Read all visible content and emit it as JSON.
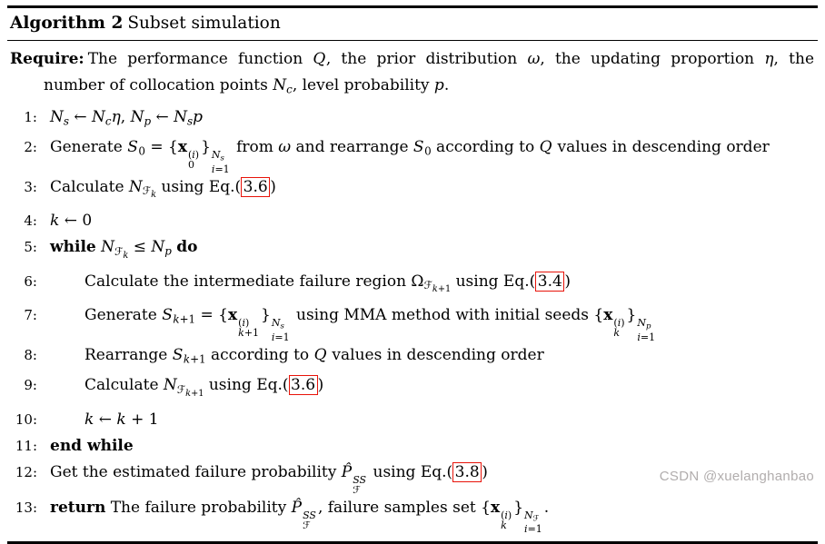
{
  "colors": {
    "rule": "#000000",
    "eqref_border": "#e81309",
    "watermark": "#b1adad"
  },
  "algorithm": {
    "label": "Algorithm 2",
    "title": "Subset simulation",
    "require": {
      "label": "Require:",
      "text_html": "The performance function <span class=\"cal\">Q</span>, the prior distribution <i>ω</i>, the updating proportion <i>η</i>, the number of collocation points <i>N</i><sub><i>c</i></sub>, level probability <i>p</i>."
    },
    "lines": [
      {
        "num": "1:",
        "indent": 0,
        "html": "<i>N</i><sub><i>s</i></sub> ← <i>N</i><sub><i>c</i></sub><i>η</i>, <i>N</i><sub><i>p</i></sub> ← <i>N</i><sub><i>s</i></sub><i>p</i>"
      },
      {
        "num": "2:",
        "indent": 0,
        "html": "Generate <span class=\"cal\">S</span><sub>0</sub> = {<b>x</b><span class=\"ss\"><span class=\"t\">(<i>i</i>)</span><span class=\"b\">0</span></span>}<span class=\"ss\"><span class=\"t\"><i>N</i><sub><i>s</i></sub></span><span class=\"b\"><i>i</i>=1</span></span> from <i>ω</i> and rearrange <span class=\"cal\">S</span><sub>0</sub> according to <span class=\"cal\">Q</span> values in descending order"
      },
      {
        "num": "3:",
        "indent": 0,
        "html": "Calculate <i>N</i><sub>ℱ<sub><i>k</i></sub></sub> using Eq.(<span class=\"eqref\" data-name=\"eq-ref-link\" data-interactable=\"true\">3.6</span>)"
      },
      {
        "num": "4:",
        "indent": 0,
        "html": "<i>k</i> ← 0"
      },
      {
        "num": "5:",
        "indent": 0,
        "html": "<b>while</b> <i>N</i><sub>ℱ<sub><i>k</i></sub></sub> ≤ <i>N</i><sub><i>p</i></sub> <b>do</b>"
      },
      {
        "num": "6:",
        "indent": 1,
        "html": "Calculate the intermediate failure region Ω<sub>ℱ<sub><i>k</i>+1</sub></sub> using Eq.(<span class=\"eqref\" data-name=\"eq-ref-link\" data-interactable=\"true\">3.4</span>)"
      },
      {
        "num": "7:",
        "indent": 1,
        "html": "Generate <span class=\"cal\">S</span><sub><i>k</i>+1</sub> = {<b>x</b><span class=\"ss\"><span class=\"t\">(<i>i</i>)</span><span class=\"b\"><i>k</i>+1</span></span>}<span class=\"ss\"><span class=\"t\"><i>N</i><sub><i>s</i></sub></span><span class=\"b\"><i>i</i>=1</span></span> using MMA method with initial seeds {<b>x</b><span class=\"ss\"><span class=\"t\">(<i>i</i>)</span><span class=\"b\"><i>k</i></span></span>}<span class=\"ss\"><span class=\"t\"><i>N</i><sub><i>p</i></sub></span><span class=\"b\"><i>i</i>=1</span></span>"
      },
      {
        "num": "8:",
        "indent": 1,
        "html": "Rearrange <span class=\"cal\">S</span><sub><i>k</i>+1</sub> according to <span class=\"cal\">Q</span> values in descending order"
      },
      {
        "num": "9:",
        "indent": 1,
        "html": "Calculate <i>N</i><sub>ℱ<sub><i>k</i>+1</sub></sub> using Eq.(<span class=\"eqref\" data-name=\"eq-ref-link\" data-interactable=\"true\">3.6</span>)"
      },
      {
        "num": "10:",
        "indent": 1,
        "html": "<i>k</i> ← <i>k</i> + 1"
      },
      {
        "num": "11:",
        "indent": 0,
        "html": "<b>end while</b>"
      },
      {
        "num": "12:",
        "indent": 0,
        "html": "Get the estimated failure probability <i>P̂</i><span class=\"ss\"><span class=\"t\"><i>SS</i></span><span class=\"b\">ℱ</span></span> using Eq.(<span class=\"eqref\" data-name=\"eq-ref-link\" data-interactable=\"true\">3.8</span>)"
      },
      {
        "num": "13:",
        "indent": 0,
        "html": "<b>return</b> The failure probability <i>P̂</i><span class=\"ss\"><span class=\"t\"><i>SS</i></span><span class=\"b\">ℱ</span></span>, failure samples set {<b>x</b><span class=\"ss\"><span class=\"t\">(<i>i</i>)</span><span class=\"b\"><i>k</i></span></span>}<span class=\"ss\"><span class=\"t\"><i>N</i><sub>ℱ</sub></span><span class=\"b\"><i>i</i>=1</span></span>."
      }
    ]
  },
  "watermark": {
    "text": "CSDN @xuelanghanbao"
  }
}
